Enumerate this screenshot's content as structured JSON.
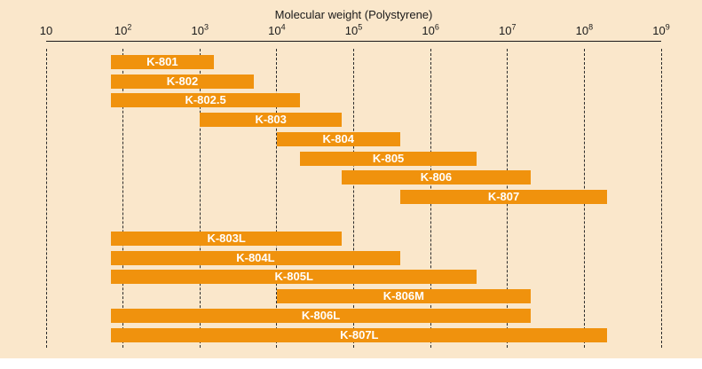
{
  "chart": {
    "title": "Molecular weight (Polystyrene)",
    "colors": {
      "page_background": "#ffffff",
      "plot_background": "#fae7cb",
      "bar": "#f0920d",
      "bar_label": "#ffffff",
      "text": "#1a1a1a",
      "gridline": "#2b2b2b"
    }
  },
  "chart_data": {
    "type": "bar",
    "variant": "horizontal-log-range-bars",
    "title": "Molecular weight (Polystyrene)",
    "legend": "none",
    "grid": "dashed-vertical-per-decade",
    "x_axis": {
      "scale": "log10",
      "min": 10,
      "max": 1000000000,
      "ticks": [
        {
          "mantissa": "10",
          "exponent": "",
          "value": 10
        },
        {
          "mantissa": "10",
          "exponent": "2",
          "value": 100
        },
        {
          "mantissa": "10",
          "exponent": "3",
          "value": 1000
        },
        {
          "mantissa": "10",
          "exponent": "4",
          "value": 10000
        },
        {
          "mantissa": "10",
          "exponent": "5",
          "value": 100000
        },
        {
          "mantissa": "10",
          "exponent": "6",
          "value": 1000000
        },
        {
          "mantissa": "10",
          "exponent": "7",
          "value": 10000000
        },
        {
          "mantissa": "10",
          "exponent": "8",
          "value": 100000000
        },
        {
          "mantissa": "10",
          "exponent": "9",
          "value": 1000000000
        }
      ]
    },
    "groups": [
      {
        "name": "upper-group",
        "bars": [
          {
            "label": "K-801",
            "range": [
              70,
              1500
            ]
          },
          {
            "label": "K-802",
            "range": [
              70,
              5000
            ]
          },
          {
            "label": "K-802.5",
            "range": [
              70,
              20000
            ]
          },
          {
            "label": "K-803",
            "range": [
              1000,
              70000
            ]
          },
          {
            "label": "K-804",
            "range": [
              10000,
              400000
            ]
          },
          {
            "label": "K-805",
            "range": [
              20000,
              4000000
            ]
          },
          {
            "label": "K-806",
            "range": [
              70000,
              20000000
            ]
          },
          {
            "label": "K-807",
            "range": [
              400000,
              200000000
            ]
          }
        ]
      },
      {
        "name": "lower-group",
        "bars": [
          {
            "label": "K-803L",
            "range": [
              70,
              70000
            ]
          },
          {
            "label": "K-804L",
            "range": [
              70,
              400000
            ]
          },
          {
            "label": "K-805L",
            "range": [
              70,
              4000000
            ]
          },
          {
            "label": "K-806M",
            "range": [
              10000,
              20000000
            ]
          },
          {
            "label": "K-806L",
            "range": [
              70,
              20000000
            ]
          },
          {
            "label": "K-807L",
            "range": [
              70,
              200000000
            ]
          }
        ]
      }
    ]
  }
}
